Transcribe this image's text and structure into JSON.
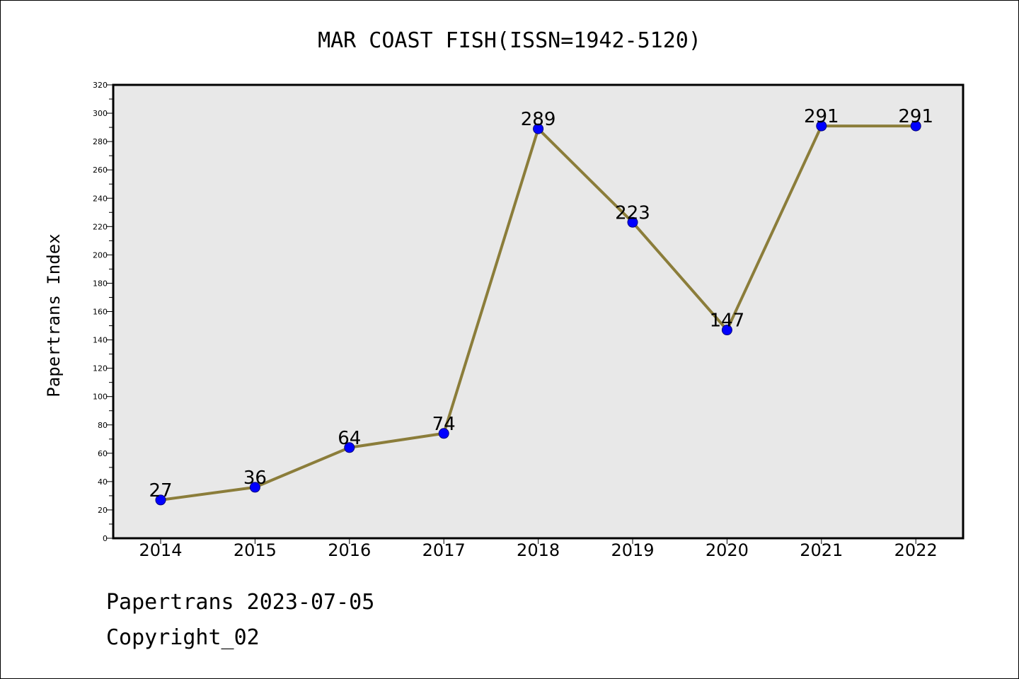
{
  "chart_data": {
    "type": "line",
    "title": "MAR COAST FISH(ISSN=1942-5120)",
    "xlabel": "",
    "ylabel": "Papertrans Index",
    "categories": [
      "2014",
      "2015",
      "2016",
      "2017",
      "2018",
      "2019",
      "2020",
      "2021",
      "2022"
    ],
    "series": [
      {
        "values": [
          27,
          36,
          64,
          74,
          289,
          223,
          147,
          291,
          291
        ]
      }
    ],
    "ylim": [
      0,
      320
    ],
    "ytick_step": 20,
    "grid": false,
    "legend": "none",
    "colors": {
      "line": "#8b7d3a",
      "marker": "#0000ff",
      "marker_edge": "#000080",
      "plot_bg": "#e8e8e8"
    }
  },
  "footer": {
    "line1": "Papertrans 2023-07-05",
    "line2": "Copyright_02"
  }
}
